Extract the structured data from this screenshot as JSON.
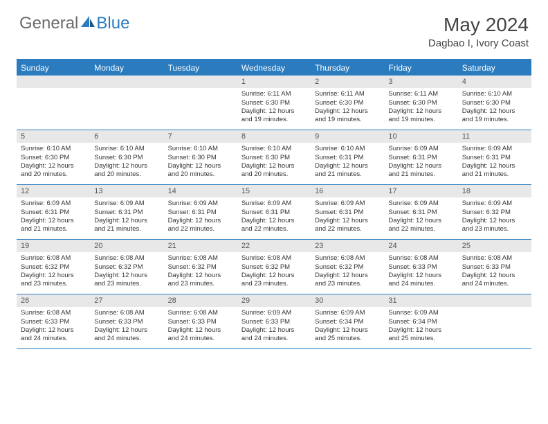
{
  "logo": {
    "general": "General",
    "blue": "Blue"
  },
  "title": "May 2024",
  "location": "Dagbao I, Ivory Coast",
  "header_bg": "#2b7bbf",
  "header_text_color": "#ffffff",
  "day_number_bg": "#e8e8e8",
  "border_color": "#2b7bbf",
  "days_of_week": [
    "Sunday",
    "Monday",
    "Tuesday",
    "Wednesday",
    "Thursday",
    "Friday",
    "Saturday"
  ],
  "weeks": [
    [
      {
        "empty": true
      },
      {
        "empty": true
      },
      {
        "empty": true
      },
      {
        "num": "1",
        "sunrise": "Sunrise: 6:11 AM",
        "sunset": "Sunset: 6:30 PM",
        "dl1": "Daylight: 12 hours",
        "dl2": "and 19 minutes."
      },
      {
        "num": "2",
        "sunrise": "Sunrise: 6:11 AM",
        "sunset": "Sunset: 6:30 PM",
        "dl1": "Daylight: 12 hours",
        "dl2": "and 19 minutes."
      },
      {
        "num": "3",
        "sunrise": "Sunrise: 6:11 AM",
        "sunset": "Sunset: 6:30 PM",
        "dl1": "Daylight: 12 hours",
        "dl2": "and 19 minutes."
      },
      {
        "num": "4",
        "sunrise": "Sunrise: 6:10 AM",
        "sunset": "Sunset: 6:30 PM",
        "dl1": "Daylight: 12 hours",
        "dl2": "and 19 minutes."
      }
    ],
    [
      {
        "num": "5",
        "sunrise": "Sunrise: 6:10 AM",
        "sunset": "Sunset: 6:30 PM",
        "dl1": "Daylight: 12 hours",
        "dl2": "and 20 minutes."
      },
      {
        "num": "6",
        "sunrise": "Sunrise: 6:10 AM",
        "sunset": "Sunset: 6:30 PM",
        "dl1": "Daylight: 12 hours",
        "dl2": "and 20 minutes."
      },
      {
        "num": "7",
        "sunrise": "Sunrise: 6:10 AM",
        "sunset": "Sunset: 6:30 PM",
        "dl1": "Daylight: 12 hours",
        "dl2": "and 20 minutes."
      },
      {
        "num": "8",
        "sunrise": "Sunrise: 6:10 AM",
        "sunset": "Sunset: 6:30 PM",
        "dl1": "Daylight: 12 hours",
        "dl2": "and 20 minutes."
      },
      {
        "num": "9",
        "sunrise": "Sunrise: 6:10 AM",
        "sunset": "Sunset: 6:31 PM",
        "dl1": "Daylight: 12 hours",
        "dl2": "and 21 minutes."
      },
      {
        "num": "10",
        "sunrise": "Sunrise: 6:09 AM",
        "sunset": "Sunset: 6:31 PM",
        "dl1": "Daylight: 12 hours",
        "dl2": "and 21 minutes."
      },
      {
        "num": "11",
        "sunrise": "Sunrise: 6:09 AM",
        "sunset": "Sunset: 6:31 PM",
        "dl1": "Daylight: 12 hours",
        "dl2": "and 21 minutes."
      }
    ],
    [
      {
        "num": "12",
        "sunrise": "Sunrise: 6:09 AM",
        "sunset": "Sunset: 6:31 PM",
        "dl1": "Daylight: 12 hours",
        "dl2": "and 21 minutes."
      },
      {
        "num": "13",
        "sunrise": "Sunrise: 6:09 AM",
        "sunset": "Sunset: 6:31 PM",
        "dl1": "Daylight: 12 hours",
        "dl2": "and 21 minutes."
      },
      {
        "num": "14",
        "sunrise": "Sunrise: 6:09 AM",
        "sunset": "Sunset: 6:31 PM",
        "dl1": "Daylight: 12 hours",
        "dl2": "and 22 minutes."
      },
      {
        "num": "15",
        "sunrise": "Sunrise: 6:09 AM",
        "sunset": "Sunset: 6:31 PM",
        "dl1": "Daylight: 12 hours",
        "dl2": "and 22 minutes."
      },
      {
        "num": "16",
        "sunrise": "Sunrise: 6:09 AM",
        "sunset": "Sunset: 6:31 PM",
        "dl1": "Daylight: 12 hours",
        "dl2": "and 22 minutes."
      },
      {
        "num": "17",
        "sunrise": "Sunrise: 6:09 AM",
        "sunset": "Sunset: 6:31 PM",
        "dl1": "Daylight: 12 hours",
        "dl2": "and 22 minutes."
      },
      {
        "num": "18",
        "sunrise": "Sunrise: 6:09 AM",
        "sunset": "Sunset: 6:32 PM",
        "dl1": "Daylight: 12 hours",
        "dl2": "and 23 minutes."
      }
    ],
    [
      {
        "num": "19",
        "sunrise": "Sunrise: 6:08 AM",
        "sunset": "Sunset: 6:32 PM",
        "dl1": "Daylight: 12 hours",
        "dl2": "and 23 minutes."
      },
      {
        "num": "20",
        "sunrise": "Sunrise: 6:08 AM",
        "sunset": "Sunset: 6:32 PM",
        "dl1": "Daylight: 12 hours",
        "dl2": "and 23 minutes."
      },
      {
        "num": "21",
        "sunrise": "Sunrise: 6:08 AM",
        "sunset": "Sunset: 6:32 PM",
        "dl1": "Daylight: 12 hours",
        "dl2": "and 23 minutes."
      },
      {
        "num": "22",
        "sunrise": "Sunrise: 6:08 AM",
        "sunset": "Sunset: 6:32 PM",
        "dl1": "Daylight: 12 hours",
        "dl2": "and 23 minutes."
      },
      {
        "num": "23",
        "sunrise": "Sunrise: 6:08 AM",
        "sunset": "Sunset: 6:32 PM",
        "dl1": "Daylight: 12 hours",
        "dl2": "and 23 minutes."
      },
      {
        "num": "24",
        "sunrise": "Sunrise: 6:08 AM",
        "sunset": "Sunset: 6:33 PM",
        "dl1": "Daylight: 12 hours",
        "dl2": "and 24 minutes."
      },
      {
        "num": "25",
        "sunrise": "Sunrise: 6:08 AM",
        "sunset": "Sunset: 6:33 PM",
        "dl1": "Daylight: 12 hours",
        "dl2": "and 24 minutes."
      }
    ],
    [
      {
        "num": "26",
        "sunrise": "Sunrise: 6:08 AM",
        "sunset": "Sunset: 6:33 PM",
        "dl1": "Daylight: 12 hours",
        "dl2": "and 24 minutes."
      },
      {
        "num": "27",
        "sunrise": "Sunrise: 6:08 AM",
        "sunset": "Sunset: 6:33 PM",
        "dl1": "Daylight: 12 hours",
        "dl2": "and 24 minutes."
      },
      {
        "num": "28",
        "sunrise": "Sunrise: 6:08 AM",
        "sunset": "Sunset: 6:33 PM",
        "dl1": "Daylight: 12 hours",
        "dl2": "and 24 minutes."
      },
      {
        "num": "29",
        "sunrise": "Sunrise: 6:09 AM",
        "sunset": "Sunset: 6:33 PM",
        "dl1": "Daylight: 12 hours",
        "dl2": "and 24 minutes."
      },
      {
        "num": "30",
        "sunrise": "Sunrise: 6:09 AM",
        "sunset": "Sunset: 6:34 PM",
        "dl1": "Daylight: 12 hours",
        "dl2": "and 25 minutes."
      },
      {
        "num": "31",
        "sunrise": "Sunrise: 6:09 AM",
        "sunset": "Sunset: 6:34 PM",
        "dl1": "Daylight: 12 hours",
        "dl2": "and 25 minutes."
      },
      {
        "empty": true
      }
    ]
  ]
}
